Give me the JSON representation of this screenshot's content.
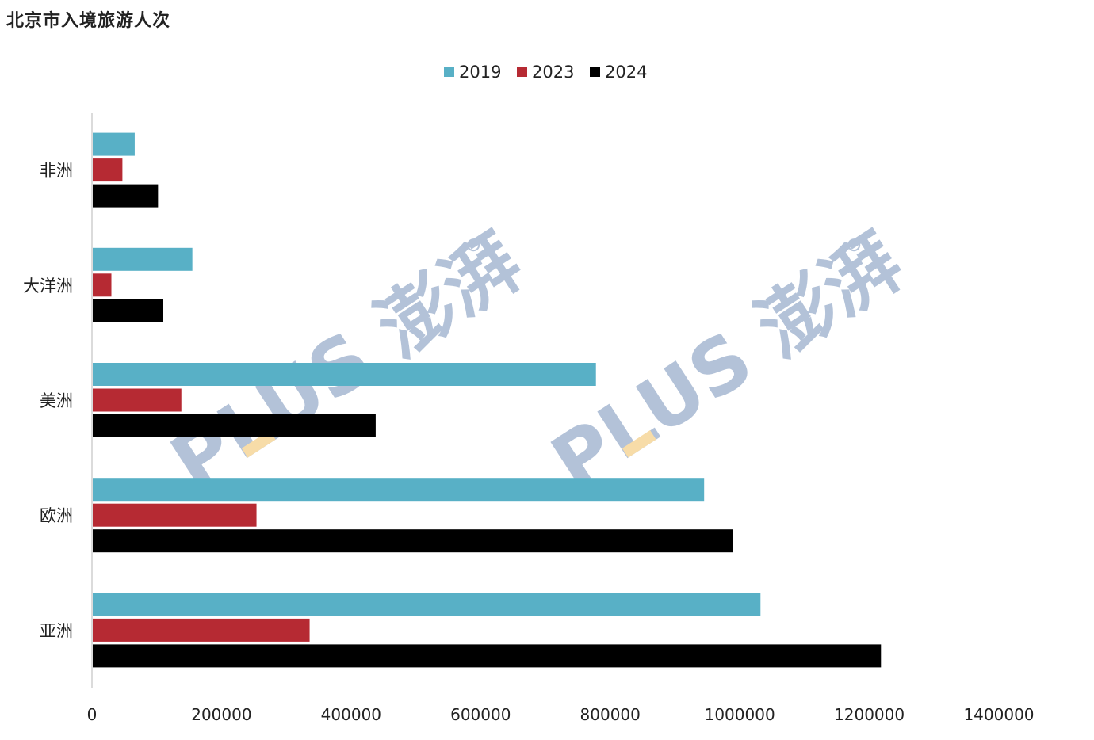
{
  "title": "北京市入境旅游人次",
  "watermark": {
    "text": "PLUS 澎湃",
    "color_blue": "#a6b8d2",
    "color_yellow": "#f6d69a"
  },
  "chart_data": {
    "type": "bar",
    "orientation": "horizontal",
    "categories": [
      "非洲",
      "大洋洲",
      "美洲",
      "欧洲",
      "亚洲"
    ],
    "series": [
      {
        "name": "2019",
        "color": "#58b0c6",
        "values": [
          66000,
          155000,
          778000,
          945000,
          1032000
        ]
      },
      {
        "name": "2023",
        "color": "#b62a33",
        "values": [
          47000,
          30000,
          138000,
          254000,
          336000
        ]
      },
      {
        "name": "2024",
        "color": "#000000",
        "values": [
          102000,
          109000,
          438000,
          989000,
          1218000
        ]
      }
    ],
    "xlim": [
      0,
      1400000
    ],
    "xticks": [
      {
        "value": 0,
        "label": "0"
      },
      {
        "value": 200000,
        "label": "200000"
      },
      {
        "value": 400000,
        "label": "400000"
      },
      {
        "value": 600000,
        "label": "600000"
      },
      {
        "value": 800000,
        "label": "800000"
      },
      {
        "value": 1000000,
        "label": "1000000"
      },
      {
        "value": 1200000,
        "label": "1200000"
      },
      {
        "value": 1400000,
        "label": "1400000"
      }
    ],
    "xlabel": "",
    "ylabel": "",
    "grid": false,
    "legend_position": "top-center"
  }
}
